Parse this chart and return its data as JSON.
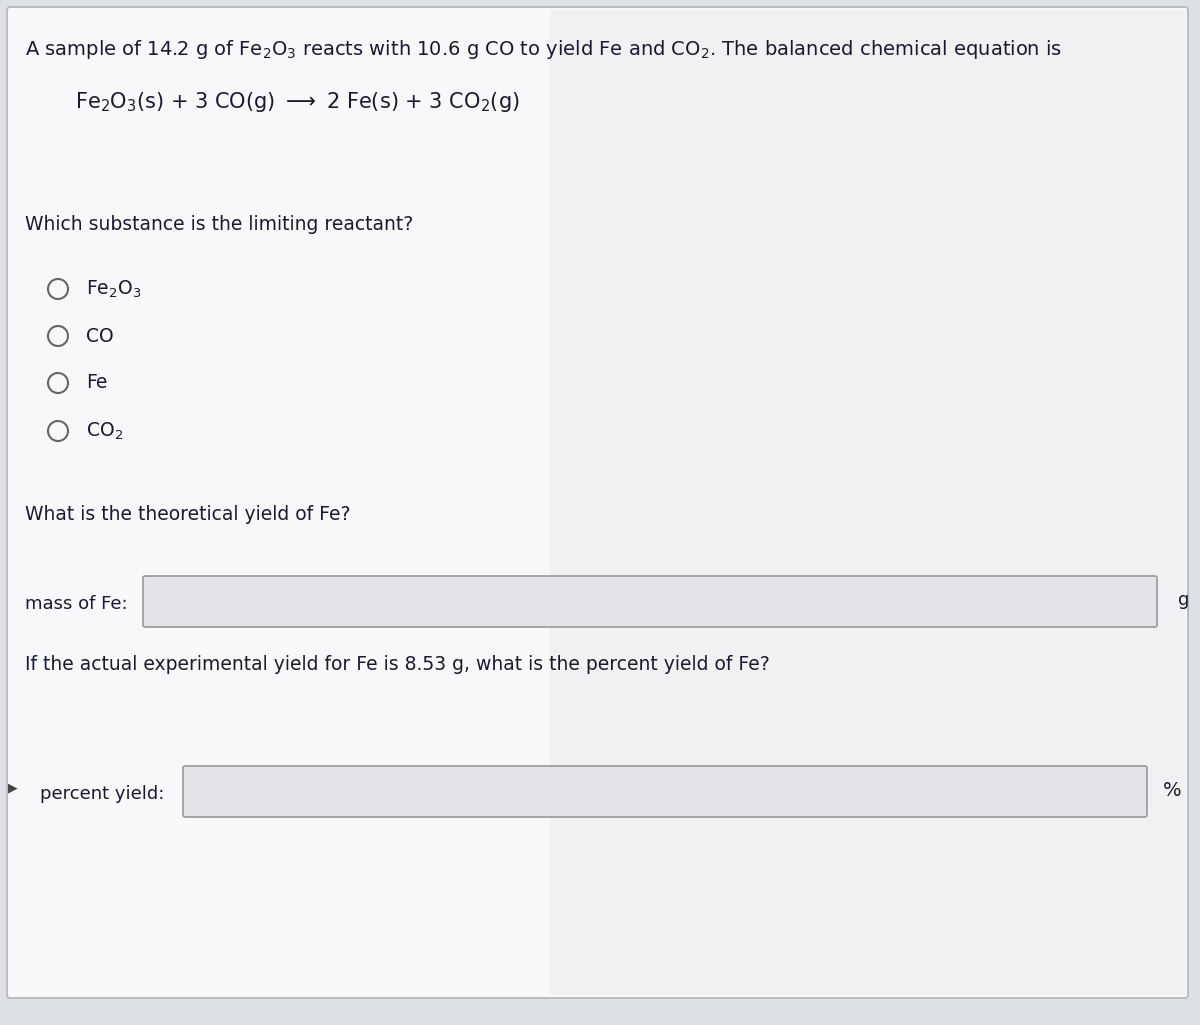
{
  "bg_color": "#dde0e5",
  "card_color": "#f4f4f6",
  "text_color": "#1a1a2e",
  "question1": "Which substance is the limiting reactant?",
  "radio_options_latex": [
    "Fe$_2$O$_3$",
    "CO",
    "Fe",
    "CO$_2$"
  ],
  "question2": "What is the theoretical yield of Fe?",
  "label_mass": "mass of Fe:",
  "question3": "If the actual experimental yield for Fe is 8.53 g, what is the percent yield of Fe?",
  "label_percent": "percent yield:",
  "percent_symbol": "%",
  "g_symbol": "g",
  "input_box_color": "#e2e4e8",
  "input_box_border": "#999999",
  "font_size_title": 14,
  "font_size_eq": 15,
  "font_size_body": 13.5,
  "font_size_radio": 13.5,
  "font_size_label": 13
}
